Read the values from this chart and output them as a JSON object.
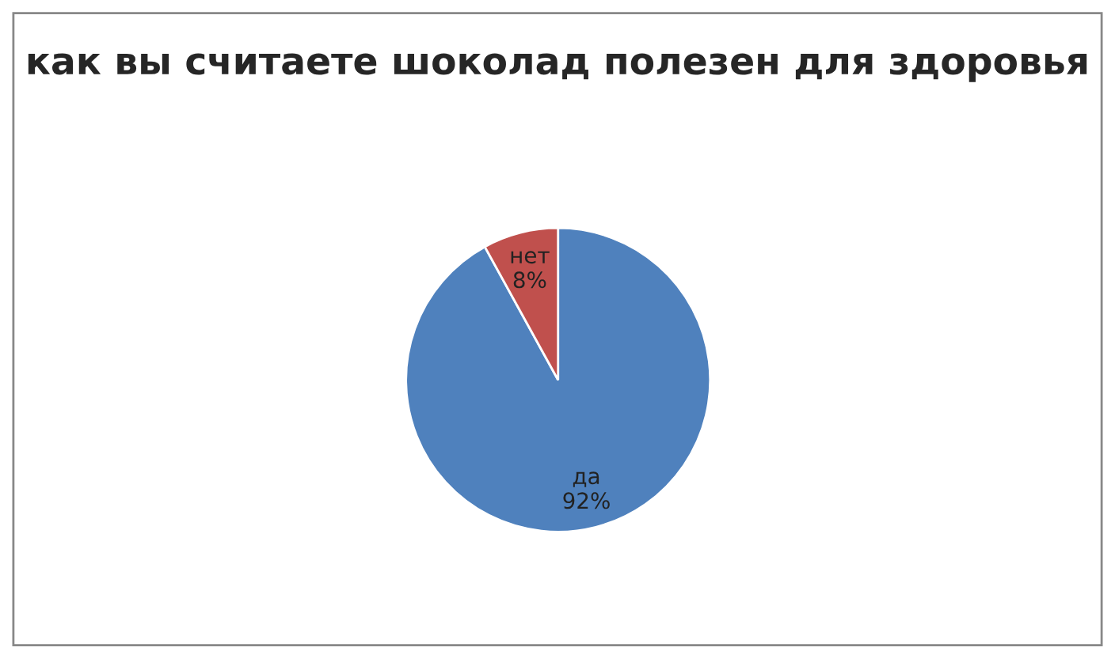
{
  "chart_data": {
    "type": "pie",
    "title": "как вы считаете шоколад полезен для здоровья",
    "categories": [
      "да",
      "нет"
    ],
    "values": [
      92,
      8
    ],
    "value_labels": [
      "92%",
      "8%"
    ],
    "colors": [
      "#4f81bd",
      "#c0504d"
    ],
    "legend": false
  }
}
